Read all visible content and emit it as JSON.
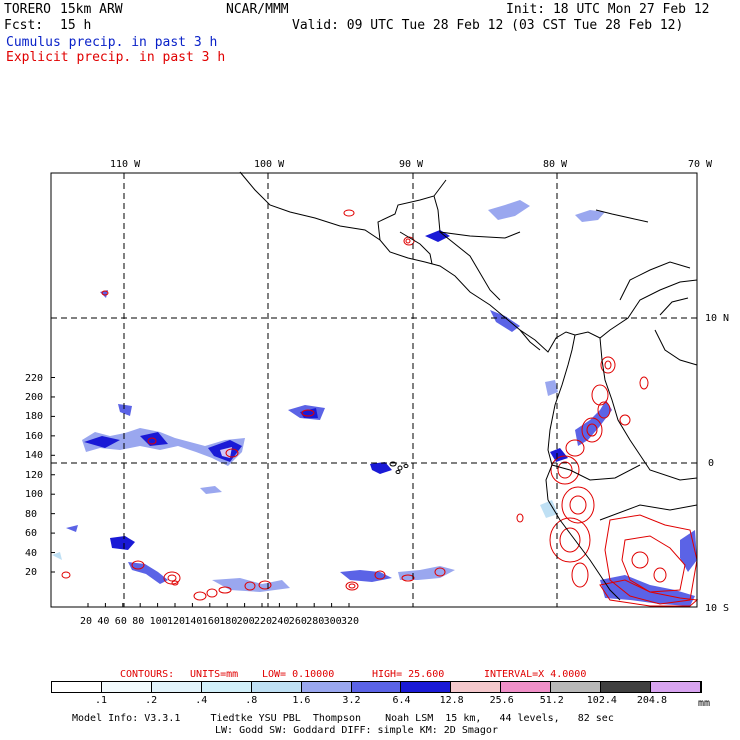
{
  "header": {
    "model": "TORERO",
    "resolution": "15km ARW",
    "center": "NCAR/MMM",
    "init": "Init: 18 UTC Mon 27 Feb 12",
    "fcst_label": "Fcst:",
    "fcst_value": "15 h",
    "valid": "Valid: 09 UTC Tue 28 Feb 12 (03 CST Tue 28 Feb 12)",
    "line_cumulus": "Cumulus precip. in past 3 h",
    "line_explicit": "Explicit precip. in past 3 h"
  },
  "map": {
    "lon_labels": [
      "110 W",
      "100 W",
      "90 W",
      "80 W",
      "70 W"
    ],
    "lat_labels": [
      "10 N",
      "0",
      "10 S"
    ],
    "y_ticks": [
      "220",
      "200",
      "180",
      "160",
      "140",
      "120",
      "100",
      "80",
      "60",
      "40",
      "20"
    ],
    "x_ticks": [
      "20",
      "40",
      "60",
      "80",
      "100",
      "120",
      "140",
      "160",
      "180",
      "200",
      "220",
      "240",
      "260",
      "280",
      "300",
      "320"
    ]
  },
  "contours_line": {
    "prefix": "CONTOURS:",
    "units": "UNITS=mm",
    "low": "LOW= 0.10000",
    "high": "HIGH= 25.600",
    "interval": "INTERVAL=X 4.0000"
  },
  "colorbar": {
    "labels": [
      ".1",
      ".2",
      ".4",
      ".8",
      "1.6",
      "3.2",
      "6.4",
      "12.8",
      "25.6",
      "51.2",
      "102.4",
      "204.8"
    ],
    "unit": "mm",
    "colors": [
      "#ffffff",
      "#f2fafd",
      "#e2f3fb",
      "#d2f0fa",
      "#bfe0f4",
      "#9aa7ef",
      "#5b63e6",
      "#1a1ad6",
      "#f4c8cc",
      "#f090c8",
      "#b8b8b8",
      "#404040",
      "#d8a4f0"
    ]
  },
  "footer": {
    "line1": "Model Info: V3.3.1     Tiedtke YSU PBL  Thompson    Noah LSM  15 km,   44 levels,   82 sec",
    "line2": "LW: Godd SW: Goddard DIFF: simple KM: 2D Smagor"
  }
}
